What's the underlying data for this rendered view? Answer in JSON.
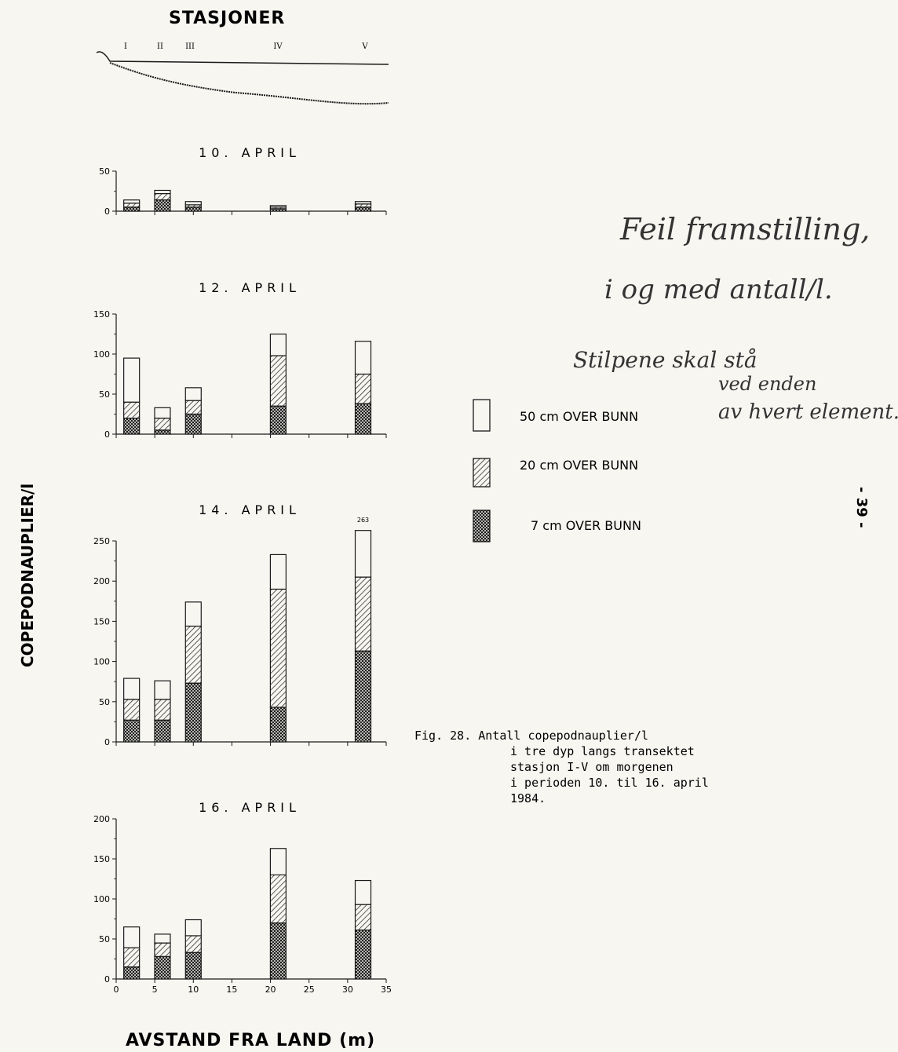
{
  "chart_data": [
    {
      "type": "bar",
      "stacked": true,
      "title": "10. APRIL",
      "x": [
        2,
        6,
        10,
        21,
        32
      ],
      "xlim": [
        0,
        35
      ],
      "ylim": [
        0,
        50
      ],
      "yticks": [
        0,
        50
      ],
      "series": [
        {
          "name": "7 cm OVER BUNN",
          "values": [
            5,
            14,
            5,
            3,
            5
          ]
        },
        {
          "name": "20 cm OVER BUNN",
          "values": [
            5,
            8,
            3,
            2,
            4
          ]
        },
        {
          "name": "50 cm OVER BUNN",
          "values": [
            4,
            4,
            4,
            2,
            3
          ]
        }
      ]
    },
    {
      "type": "bar",
      "stacked": true,
      "title": "12. APRIL",
      "x": [
        2,
        6,
        10,
        21,
        32
      ],
      "xlim": [
        0,
        35
      ],
      "ylim": [
        0,
        150
      ],
      "yticks": [
        0,
        50,
        100,
        150
      ],
      "series": [
        {
          "name": "7 cm OVER BUNN",
          "values": [
            20,
            5,
            25,
            35,
            38
          ]
        },
        {
          "name": "20 cm OVER BUNN",
          "values": [
            20,
            15,
            17,
            63,
            37
          ]
        },
        {
          "name": "50 cm OVER BUNN",
          "values": [
            55,
            13,
            16,
            27,
            41
          ]
        }
      ]
    },
    {
      "type": "bar",
      "stacked": true,
      "title": "14. APRIL",
      "x": [
        2,
        6,
        10,
        21,
        32
      ],
      "xlim": [
        0,
        35
      ],
      "ylim": [
        0,
        250
      ],
      "yticks": [
        0,
        50,
        100,
        150,
        200,
        250
      ],
      "annotation": {
        "x": 32,
        "label": "263"
      },
      "series": [
        {
          "name": "7 cm OVER BUNN",
          "values": [
            27,
            27,
            73,
            43,
            113
          ]
        },
        {
          "name": "20 cm OVER BUNN",
          "values": [
            26,
            26,
            71,
            147,
            92
          ]
        },
        {
          "name": "50 cm OVER BUNN",
          "values": [
            26,
            23,
            30,
            43,
            58
          ]
        }
      ]
    },
    {
      "type": "bar",
      "stacked": true,
      "title": "16. APRIL",
      "x": [
        2,
        6,
        10,
        21,
        32
      ],
      "xlim": [
        0,
        35
      ],
      "ylim": [
        0,
        200
      ],
      "yticks": [
        0,
        50,
        100,
        150,
        200
      ],
      "xticks": [
        0,
        5,
        10,
        15,
        20,
        25,
        30,
        35
      ],
      "series": [
        {
          "name": "7 cm OVER BUNN",
          "values": [
            15,
            28,
            33,
            70,
            61
          ]
        },
        {
          "name": "20 cm OVER BUNN",
          "values": [
            24,
            17,
            21,
            60,
            32
          ]
        },
        {
          "name": "50 cm OVER BUNN",
          "values": [
            26,
            11,
            20,
            33,
            30
          ]
        }
      ]
    }
  ],
  "stations": {
    "title": "STASJONER",
    "labels": [
      "I",
      "II",
      "III",
      "IV",
      "V"
    ]
  },
  "ylabel": "COPEPODNAUPLIER/l",
  "xlabel": "AVSTAND FRA LAND (m)",
  "legend": [
    {
      "label": "50 cm OVER BUNN",
      "pattern": "none"
    },
    {
      "label": "20 cm OVER BUNN",
      "pattern": "hatch"
    },
    {
      "label": "7 cm OVER BUNN",
      "pattern": "crosshatch"
    }
  ],
  "caption": {
    "lines": [
      "Fig. 28. Antall copepodnauplier/l",
      "i tre dyp langs transektet",
      "stasjon I-V om morgenen",
      "i perioden 10. til 16. april",
      "1984."
    ]
  },
  "handwritten": {
    "lines": [
      "Feil framstilling,",
      "i og med antall/l.",
      "Stilpene skal stå",
      "ved enden",
      "av hvert element."
    ]
  },
  "page_number": "- 39 -",
  "colors": {
    "ink": "#1a1a1a",
    "paper": "#f7f6f1"
  }
}
